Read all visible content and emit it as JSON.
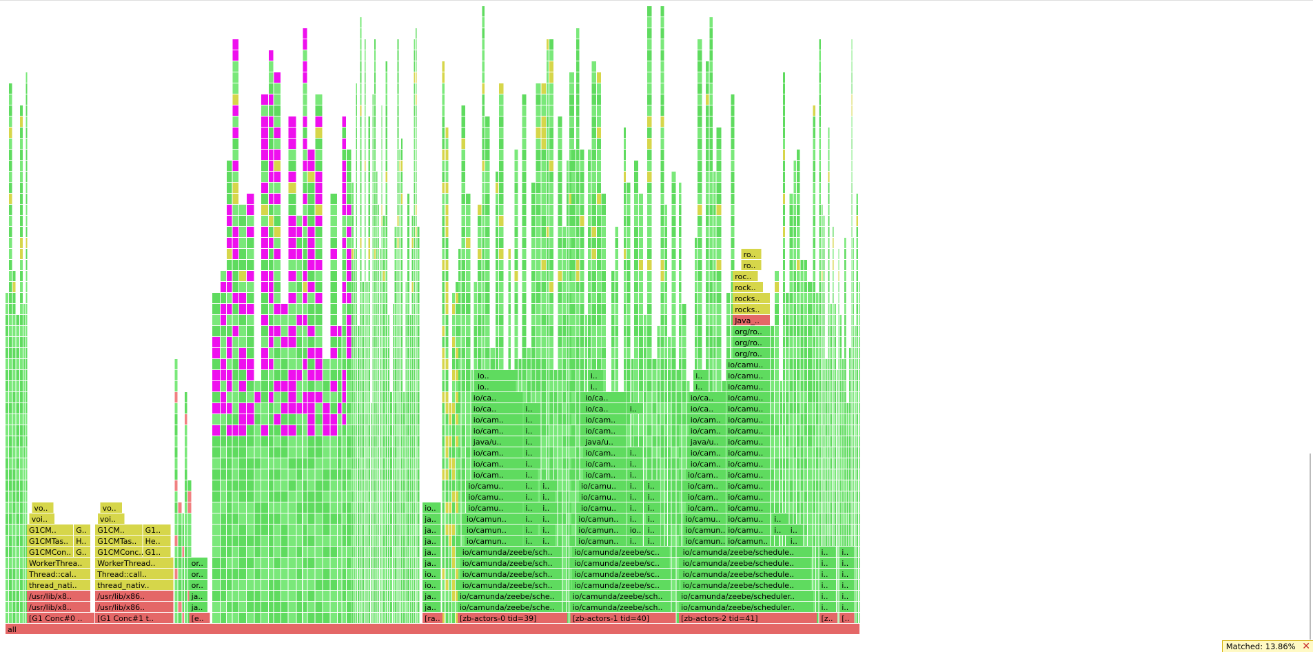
{
  "search": {
    "matched_label": "Matched:",
    "matched_value": "13.86%"
  },
  "icons": {
    "close": "close-icon"
  },
  "colors": {
    "root": "#e06666",
    "thread": "#e86060",
    "java": "#5fdb5f",
    "jvm": "#d8d845",
    "native": "#e87070",
    "highlight": "#ee00ee"
  },
  "frames": [
    {
      "f": "all",
      "x": 0,
      "w": 100,
      "d": 0,
      "c": "r"
    },
    {
      "f": "[G1 Conc#0 ..",
      "x": 2.5,
      "w": 8,
      "d": 1,
      "c": "r"
    },
    {
      "f": "/usr/lib/x8..",
      "x": 2.5,
      "w": 7.5,
      "d": 2,
      "c": "r"
    },
    {
      "f": "/usr/lib/x8..",
      "x": 2.5,
      "w": 7.5,
      "d": 3,
      "c": "r"
    },
    {
      "f": "thread_nati..",
      "x": 2.5,
      "w": 7.5,
      "d": 4,
      "c": "y"
    },
    {
      "f": "Thread::cal..",
      "x": 2.5,
      "w": 7.5,
      "d": 5,
      "c": "y"
    },
    {
      "f": "WorkerThrea..",
      "x": 2.5,
      "w": 7.5,
      "d": 6,
      "c": "y"
    },
    {
      "f": "G1CMCon..",
      "x": 2.5,
      "w": 5.5,
      "d": 7,
      "c": "y"
    },
    {
      "f": "G..",
      "x": 8.0,
      "w": 2.0,
      "d": 7,
      "c": "y"
    },
    {
      "f": "G1CMTas..",
      "x": 2.5,
      "w": 5.5,
      "d": 8,
      "c": "y"
    },
    {
      "f": "H..",
      "x": 8.0,
      "w": 2.0,
      "d": 8,
      "c": "y"
    },
    {
      "f": "G1CM..",
      "x": 2.5,
      "w": 5.5,
      "d": 9,
      "c": "y"
    },
    {
      "f": "G..",
      "x": 8.0,
      "w": 2.0,
      "d": 9,
      "c": "y"
    },
    {
      "f": "voi..",
      "x": 2.8,
      "w": 3.0,
      "d": 10,
      "c": "y"
    },
    {
      "f": "vo..",
      "x": 3.1,
      "w": 2.6,
      "d": 11,
      "c": "y"
    },
    {
      "f": "[G1 Conc#1 t..",
      "x": 10.5,
      "w": 9.2,
      "d": 1,
      "c": "r"
    },
    {
      "f": "/usr/lib/x86..",
      "x": 10.5,
      "w": 9.2,
      "d": 2,
      "c": "r"
    },
    {
      "f": "/usr/lib/x86..",
      "x": 10.5,
      "w": 9.2,
      "d": 3,
      "c": "r"
    },
    {
      "f": "thread_nativ..",
      "x": 10.5,
      "w": 9.2,
      "d": 4,
      "c": "y"
    },
    {
      "f": "Thread::call..",
      "x": 10.5,
      "w": 9.2,
      "d": 5,
      "c": "y"
    },
    {
      "f": "WorkerThread..",
      "x": 10.5,
      "w": 9.2,
      "d": 6,
      "c": "y"
    },
    {
      "f": "G1CMConc..",
      "x": 10.5,
      "w": 5.6,
      "d": 7,
      "c": "y"
    },
    {
      "f": "G1..",
      "x": 16.1,
      "w": 3.3,
      "d": 7,
      "c": "y"
    },
    {
      "f": "G1CMTas..",
      "x": 10.5,
      "w": 5.6,
      "d": 8,
      "c": "y"
    },
    {
      "f": "He..",
      "x": 16.1,
      "w": 3.3,
      "d": 8,
      "c": "y"
    },
    {
      "f": "G1CM..",
      "x": 10.5,
      "w": 5.6,
      "d": 9,
      "c": "y"
    },
    {
      "f": "G1..",
      "x": 16.1,
      "w": 3.3,
      "d": 9,
      "c": "y"
    },
    {
      "f": "voi..",
      "x": 10.8,
      "w": 3.2,
      "d": 10,
      "c": "y"
    },
    {
      "f": "vo..",
      "x": 11.1,
      "w": 2.6,
      "d": 11,
      "c": "y"
    },
    {
      "f": "[e..",
      "x": 21.5,
      "w": 2.5,
      "d": 1,
      "c": "r"
    },
    {
      "f": "ja..",
      "x": 21.5,
      "w": 2.2,
      "d": 2,
      "c": "g"
    },
    {
      "f": "ja..",
      "x": 21.5,
      "w": 2.2,
      "d": 3,
      "c": "g"
    },
    {
      "f": "or..",
      "x": 21.5,
      "w": 2.2,
      "d": 4,
      "c": "g"
    },
    {
      "f": "or..",
      "x": 21.5,
      "w": 2.2,
      "d": 5,
      "c": "g"
    },
    {
      "f": "or..",
      "x": 21.5,
      "w": 2.2,
      "d": 6,
      "c": "g"
    },
    {
      "f": "[ra..",
      "x": 48.8,
      "w": 2.4,
      "d": 1,
      "c": "r"
    },
    {
      "f": "ja..",
      "x": 48.8,
      "w": 2.2,
      "d": 2,
      "c": "g"
    },
    {
      "f": "ja..",
      "x": 48.8,
      "w": 2.2,
      "d": 3,
      "c": "g"
    },
    {
      "f": "io..",
      "x": 48.8,
      "w": 2.2,
      "d": 4,
      "c": "g"
    },
    {
      "f": "io..",
      "x": 48.8,
      "w": 2.2,
      "d": 5,
      "c": "g"
    },
    {
      "f": "ja..",
      "x": 48.8,
      "w": 2.2,
      "d": 6,
      "c": "g"
    },
    {
      "f": "ja..",
      "x": 48.8,
      "w": 2.2,
      "d": 7,
      "c": "g"
    },
    {
      "f": "ja..",
      "x": 48.8,
      "w": 2.2,
      "d": 8,
      "c": "g"
    },
    {
      "f": "ja..",
      "x": 48.8,
      "w": 2.2,
      "d": 9,
      "c": "g"
    },
    {
      "f": "ja..",
      "x": 48.8,
      "w": 2.2,
      "d": 10,
      "c": "g"
    },
    {
      "f": "io..",
      "x": 48.8,
      "w": 2.2,
      "d": 11,
      "c": "g"
    },
    {
      "f": "[zb-actors-0 tid=39]",
      "x": 52.9,
      "w": 12.9,
      "d": 1,
      "c": "r"
    },
    {
      "f": "io/camunda/zeebe/sche..",
      "x": 52.9,
      "w": 12.0,
      "d": 2,
      "c": "g"
    },
    {
      "f": "io/camunda/zeebe/sche..",
      "x": 52.9,
      "w": 12.0,
      "d": 3,
      "c": "g"
    },
    {
      "f": "io/camunda/zeebe/sch..",
      "x": 53.2,
      "w": 11.5,
      "d": 4,
      "c": "g"
    },
    {
      "f": "io/camunda/zeebe/sch..",
      "x": 53.2,
      "w": 11.5,
      "d": 5,
      "c": "g"
    },
    {
      "f": "io/camunda/zeebe/sch..",
      "x": 53.2,
      "w": 11.5,
      "d": 6,
      "c": "g"
    },
    {
      "f": "io/camunda/zeebe/sch..",
      "x": 53.2,
      "w": 11.5,
      "d": 7,
      "c": "g"
    },
    {
      "f": "io/camun..",
      "x": 53.7,
      "w": 6.9,
      "d": 8,
      "c": "g"
    },
    {
      "f": "io/camun..",
      "x": 53.7,
      "w": 6.9,
      "d": 9,
      "c": "g"
    },
    {
      "f": "io/camun..",
      "x": 53.7,
      "w": 6.9,
      "d": 10,
      "c": "g"
    },
    {
      "f": "io/camu..",
      "x": 53.9,
      "w": 6.7,
      "d": 11,
      "c": "g"
    },
    {
      "f": "io/camu..",
      "x": 53.9,
      "w": 6.7,
      "d": 12,
      "c": "g"
    },
    {
      "f": "io/camu..",
      "x": 53.9,
      "w": 6.7,
      "d": 13,
      "c": "g"
    },
    {
      "f": "io/cam..",
      "x": 54.5,
      "w": 6.1,
      "d": 14,
      "c": "g"
    },
    {
      "f": "io/cam..",
      "x": 54.5,
      "w": 6.1,
      "d": 15,
      "c": "g"
    },
    {
      "f": "io/cam..",
      "x": 54.5,
      "w": 6.1,
      "d": 16,
      "c": "g"
    },
    {
      "f": "java/u..",
      "x": 54.5,
      "w": 6.1,
      "d": 17,
      "c": "g"
    },
    {
      "f": "io/cam..",
      "x": 54.5,
      "w": 6.1,
      "d": 18,
      "c": "g"
    },
    {
      "f": "io/cam..",
      "x": 54.5,
      "w": 6.1,
      "d": 19,
      "c": "g"
    },
    {
      "f": "io/ca..",
      "x": 54.5,
      "w": 6.1,
      "d": 20,
      "c": "g"
    },
    {
      "f": "io/ca..",
      "x": 54.5,
      "w": 6.1,
      "d": 21,
      "c": "g"
    },
    {
      "f": "io..",
      "x": 55.0,
      "w": 4.8,
      "d": 22,
      "c": "g"
    },
    {
      "f": "io..",
      "x": 55.0,
      "w": 4.8,
      "d": 23,
      "c": "g"
    },
    {
      "f": "i..",
      "x": 60.6,
      "w": 1.8,
      "d": 8,
      "c": "g"
    },
    {
      "f": "i..",
      "x": 60.6,
      "w": 1.8,
      "d": 9,
      "c": "g"
    },
    {
      "f": "i..",
      "x": 60.6,
      "w": 1.8,
      "d": 10,
      "c": "g"
    },
    {
      "f": "i..",
      "x": 60.6,
      "w": 1.8,
      "d": 11,
      "c": "g"
    },
    {
      "f": "i..",
      "x": 60.6,
      "w": 1.8,
      "d": 12,
      "c": "g"
    },
    {
      "f": "i..",
      "x": 60.6,
      "w": 1.8,
      "d": 13,
      "c": "g"
    },
    {
      "f": "i..",
      "x": 60.6,
      "w": 1.8,
      "d": 14,
      "c": "g"
    },
    {
      "f": "i..",
      "x": 60.6,
      "w": 1.8,
      "d": 15,
      "c": "g"
    },
    {
      "f": "i..",
      "x": 60.6,
      "w": 1.8,
      "d": 16,
      "c": "g"
    },
    {
      "f": "i..",
      "x": 60.6,
      "w": 1.8,
      "d": 17,
      "c": "g"
    },
    {
      "f": "i..",
      "x": 60.6,
      "w": 1.8,
      "d": 18,
      "c": "g"
    },
    {
      "f": "i..",
      "x": 60.6,
      "w": 1.8,
      "d": 19,
      "c": "g"
    },
    {
      "f": "i..",
      "x": 60.6,
      "w": 1.8,
      "d": 20,
      "c": "g"
    },
    {
      "f": "i..",
      "x": 62.6,
      "w": 1.8,
      "d": 8,
      "c": "g"
    },
    {
      "f": "i..",
      "x": 62.6,
      "w": 1.8,
      "d": 9,
      "c": "g"
    },
    {
      "f": "i..",
      "x": 62.6,
      "w": 1.8,
      "d": 10,
      "c": "g"
    },
    {
      "f": "i..",
      "x": 62.6,
      "w": 1.8,
      "d": 11,
      "c": "g"
    },
    {
      "f": "i..",
      "x": 62.6,
      "w": 1.8,
      "d": 12,
      "c": "g"
    },
    {
      "f": "i..",
      "x": 62.6,
      "w": 1.8,
      "d": 13,
      "c": "g"
    },
    {
      "f": "[zb-actors-1 tid=40]",
      "x": 66.1,
      "w": 12.4,
      "d": 1,
      "c": "r"
    },
    {
      "f": "io/camunda/zeebe/sch..",
      "x": 66.1,
      "w": 11.8,
      "d": 2,
      "c": "g"
    },
    {
      "f": "io/camunda/zeebe/sch..",
      "x": 66.1,
      "w": 11.8,
      "d": 3,
      "c": "g"
    },
    {
      "f": "io/camunda/zeebe/sc..",
      "x": 66.3,
      "w": 11.5,
      "d": 4,
      "c": "g"
    },
    {
      "f": "io/camunda/zeebe/sc..",
      "x": 66.3,
      "w": 11.5,
      "d": 5,
      "c": "g"
    },
    {
      "f": "io/camunda/zeebe/sc..",
      "x": 66.3,
      "w": 11.5,
      "d": 6,
      "c": "g"
    },
    {
      "f": "io/camunda/zeebe/sc..",
      "x": 66.3,
      "w": 11.5,
      "d": 7,
      "c": "g"
    },
    {
      "f": "io/camun..",
      "x": 66.8,
      "w": 5.9,
      "d": 8,
      "c": "g"
    },
    {
      "f": "io/camun..",
      "x": 66.8,
      "w": 5.9,
      "d": 9,
      "c": "g"
    },
    {
      "f": "io/camun..",
      "x": 66.8,
      "w": 5.9,
      "d": 10,
      "c": "g"
    },
    {
      "f": "io/camu..",
      "x": 67.1,
      "w": 5.6,
      "d": 11,
      "c": "g"
    },
    {
      "f": "io/camu..",
      "x": 67.1,
      "w": 5.6,
      "d": 12,
      "c": "g"
    },
    {
      "f": "io/camu..",
      "x": 67.1,
      "w": 5.6,
      "d": 13,
      "c": "g"
    },
    {
      "f": "io/cam..",
      "x": 67.6,
      "w": 5.1,
      "d": 14,
      "c": "g"
    },
    {
      "f": "io/cam..",
      "x": 67.6,
      "w": 5.1,
      "d": 15,
      "c": "g"
    },
    {
      "f": "io/cam..",
      "x": 67.6,
      "w": 5.1,
      "d": 16,
      "c": "g"
    },
    {
      "f": "java/u..",
      "x": 67.6,
      "w": 5.1,
      "d": 17,
      "c": "g"
    },
    {
      "f": "io/cam..",
      "x": 67.6,
      "w": 5.1,
      "d": 18,
      "c": "g"
    },
    {
      "f": "io/cam..",
      "x": 67.6,
      "w": 5.1,
      "d": 19,
      "c": "g"
    },
    {
      "f": "io/ca..",
      "x": 67.6,
      "w": 5.1,
      "d": 20,
      "c": "g"
    },
    {
      "f": "io/ca..",
      "x": 67.6,
      "w": 5.1,
      "d": 21,
      "c": "g"
    },
    {
      "f": "i..",
      "x": 68.2,
      "w": 1.8,
      "d": 22,
      "c": "g"
    },
    {
      "f": "i..",
      "x": 68.2,
      "w": 1.8,
      "d": 23,
      "c": "g"
    },
    {
      "f": "i..",
      "x": 72.8,
      "w": 1.8,
      "d": 8,
      "c": "g"
    },
    {
      "f": "io..",
      "x": 72.8,
      "w": 1.8,
      "d": 9,
      "c": "g"
    },
    {
      "f": "i..",
      "x": 72.8,
      "w": 1.8,
      "d": 10,
      "c": "g"
    },
    {
      "f": "i..",
      "x": 72.8,
      "w": 1.8,
      "d": 11,
      "c": "g"
    },
    {
      "f": "i..",
      "x": 72.8,
      "w": 1.8,
      "d": 12,
      "c": "g"
    },
    {
      "f": "i..",
      "x": 72.8,
      "w": 1.8,
      "d": 13,
      "c": "g"
    },
    {
      "f": "i..",
      "x": 72.8,
      "w": 1.8,
      "d": 14,
      "c": "g"
    },
    {
      "f": "i..",
      "x": 72.8,
      "w": 1.8,
      "d": 15,
      "c": "g"
    },
    {
      "f": "i..",
      "x": 72.8,
      "w": 1.8,
      "d": 16,
      "c": "g"
    },
    {
      "f": "i..",
      "x": 72.8,
      "w": 1.8,
      "d": 20,
      "c": "g"
    },
    {
      "f": "i..",
      "x": 74.9,
      "w": 1.8,
      "d": 8,
      "c": "g"
    },
    {
      "f": "i..",
      "x": 74.9,
      "w": 1.8,
      "d": 9,
      "c": "g"
    },
    {
      "f": "i..",
      "x": 74.9,
      "w": 1.8,
      "d": 10,
      "c": "g"
    },
    {
      "f": "i..",
      "x": 74.9,
      "w": 1.8,
      "d": 11,
      "c": "g"
    },
    {
      "f": "i..",
      "x": 74.9,
      "w": 1.8,
      "d": 12,
      "c": "g"
    },
    {
      "f": "i..",
      "x": 74.9,
      "w": 1.8,
      "d": 13,
      "c": "g"
    },
    {
      "f": "[zb-actors-2 tid=41]",
      "x": 78.8,
      "w": 16.2,
      "d": 1,
      "c": "r"
    },
    {
      "f": "io/camunda/zeebe/scheduler..",
      "x": 78.8,
      "w": 15.8,
      "d": 2,
      "c": "g"
    },
    {
      "f": "io/camunda/zeebe/scheduler..",
      "x": 78.8,
      "w": 15.8,
      "d": 3,
      "c": "g"
    },
    {
      "f": "io/camunda/zeebe/schedule..",
      "x": 79.0,
      "w": 15.3,
      "d": 4,
      "c": "g"
    },
    {
      "f": "io/camunda/zeebe/schedule..",
      "x": 79.0,
      "w": 15.3,
      "d": 5,
      "c": "g"
    },
    {
      "f": "io/camunda/zeebe/schedule..",
      "x": 79.0,
      "w": 15.3,
      "d": 6,
      "c": "g"
    },
    {
      "f": "io/camunda/zeebe/schedule..",
      "x": 79.0,
      "w": 15.3,
      "d": 7,
      "c": "g"
    },
    {
      "f": "io/camun..",
      "x": 79.3,
      "w": 5.0,
      "d": 8,
      "c": "g"
    },
    {
      "f": "io/camun..",
      "x": 79.3,
      "w": 5.0,
      "d": 9,
      "c": "g"
    },
    {
      "f": "io/camu..",
      "x": 79.3,
      "w": 5.0,
      "d": 10,
      "c": "g"
    },
    {
      "f": "io/cam..",
      "x": 79.6,
      "w": 4.7,
      "d": 11,
      "c": "g"
    },
    {
      "f": "io/cam..",
      "x": 79.6,
      "w": 4.7,
      "d": 12,
      "c": "g"
    },
    {
      "f": "io/cam..",
      "x": 79.6,
      "w": 4.7,
      "d": 13,
      "c": "g"
    },
    {
      "f": "io/cam..",
      "x": 79.6,
      "w": 4.7,
      "d": 14,
      "c": "g"
    },
    {
      "f": "io/cam..",
      "x": 79.9,
      "w": 4.4,
      "d": 15,
      "c": "g"
    },
    {
      "f": "io/cam..",
      "x": 79.9,
      "w": 4.4,
      "d": 16,
      "c": "g"
    },
    {
      "f": "java/u..",
      "x": 79.9,
      "w": 4.4,
      "d": 17,
      "c": "g"
    },
    {
      "f": "io/cam..",
      "x": 79.9,
      "w": 4.4,
      "d": 18,
      "c": "g"
    },
    {
      "f": "io/cam..",
      "x": 79.9,
      "w": 4.4,
      "d": 19,
      "c": "g"
    },
    {
      "f": "io/ca..",
      "x": 79.9,
      "w": 4.4,
      "d": 20,
      "c": "g"
    },
    {
      "f": "io/ca..",
      "x": 79.9,
      "w": 4.4,
      "d": 21,
      "c": "g"
    },
    {
      "f": "i..",
      "x": 80.5,
      "w": 1.8,
      "d": 22,
      "c": "g"
    },
    {
      "f": "i..",
      "x": 80.5,
      "w": 1.8,
      "d": 23,
      "c": "g"
    },
    {
      "f": "io/camun..",
      "x": 84.3,
      "w": 5.2,
      "d": 8,
      "c": "g"
    },
    {
      "f": "io/camu..",
      "x": 84.3,
      "w": 5.2,
      "d": 9,
      "c": "g"
    },
    {
      "f": "io/camu..",
      "x": 84.3,
      "w": 5.2,
      "d": 10,
      "c": "g"
    },
    {
      "f": "io/camu..",
      "x": 84.3,
      "w": 5.2,
      "d": 11,
      "c": "g"
    },
    {
      "f": "io/camu..",
      "x": 84.3,
      "w": 5.2,
      "d": 12,
      "c": "g"
    },
    {
      "f": "io/camu..",
      "x": 84.3,
      "w": 5.2,
      "d": 13,
      "c": "g"
    },
    {
      "f": "io/camu..",
      "x": 84.3,
      "w": 5.2,
      "d": 14,
      "c": "g"
    },
    {
      "f": "io/camu..",
      "x": 84.3,
      "w": 5.2,
      "d": 15,
      "c": "g"
    },
    {
      "f": "io/camu..",
      "x": 84.3,
      "w": 5.2,
      "d": 16,
      "c": "g"
    },
    {
      "f": "io/camu..",
      "x": 84.3,
      "w": 5.2,
      "d": 17,
      "c": "g"
    },
    {
      "f": "io/camu..",
      "x": 84.3,
      "w": 5.2,
      "d": 18,
      "c": "g"
    },
    {
      "f": "io/camu..",
      "x": 84.3,
      "w": 5.2,
      "d": 19,
      "c": "g"
    },
    {
      "f": "io/camu..",
      "x": 84.3,
      "w": 5.2,
      "d": 20,
      "c": "g"
    },
    {
      "f": "io/camu..",
      "x": 84.3,
      "w": 5.2,
      "d": 21,
      "c": "g"
    },
    {
      "f": "io/camu..",
      "x": 84.3,
      "w": 5.2,
      "d": 22,
      "c": "g"
    },
    {
      "f": "io/camu..",
      "x": 84.3,
      "w": 5.2,
      "d": 23,
      "c": "g"
    },
    {
      "f": "io/camu..",
      "x": 84.3,
      "w": 5.2,
      "d": 24,
      "c": "g"
    },
    {
      "f": "org/ro..",
      "x": 85.1,
      "w": 4.4,
      "d": 25,
      "c": "g"
    },
    {
      "f": "org/ro..",
      "x": 85.1,
      "w": 4.4,
      "d": 26,
      "c": "g"
    },
    {
      "f": "org/ro..",
      "x": 85.1,
      "w": 4.4,
      "d": 27,
      "c": "g"
    },
    {
      "f": "Java_..",
      "x": 85.1,
      "w": 4.4,
      "d": 28,
      "c": "r"
    },
    {
      "f": "rocks..",
      "x": 85.1,
      "w": 4.4,
      "d": 29,
      "c": "y"
    },
    {
      "f": "rocks..",
      "x": 85.1,
      "w": 4.4,
      "d": 30,
      "c": "y"
    },
    {
      "f": "rock..",
      "x": 85.1,
      "w": 3.6,
      "d": 31,
      "c": "y"
    },
    {
      "f": "roc..",
      "x": 85.1,
      "w": 3.0,
      "d": 32,
      "c": "y"
    },
    {
      "f": "ro..",
      "x": 86.1,
      "w": 2.4,
      "d": 33,
      "c": "y"
    },
    {
      "f": "ro..",
      "x": 86.1,
      "w": 2.4,
      "d": 34,
      "c": "y"
    },
    {
      "f": "i..",
      "x": 89.7,
      "w": 1.8,
      "d": 9,
      "c": "g"
    },
    {
      "f": "i..",
      "x": 89.7,
      "w": 1.8,
      "d": 10,
      "c": "g"
    },
    {
      "f": "i..",
      "x": 91.6,
      "w": 1.8,
      "d": 9,
      "c": "g"
    },
    {
      "f": "i..",
      "x": 91.6,
      "w": 1.8,
      "d": 8,
      "c": "g"
    },
    {
      "f": "[z..",
      "x": 95.2,
      "w": 2.2,
      "d": 1,
      "c": "r"
    },
    {
      "f": "i..",
      "x": 95.2,
      "w": 2.0,
      "d": 2,
      "c": "g"
    },
    {
      "f": "i..",
      "x": 95.2,
      "w": 2.0,
      "d": 3,
      "c": "g"
    },
    {
      "f": "i..",
      "x": 95.2,
      "w": 2.0,
      "d": 4,
      "c": "g"
    },
    {
      "f": "i..",
      "x": 95.2,
      "w": 2.0,
      "d": 5,
      "c": "g"
    },
    {
      "f": "i..",
      "x": 95.2,
      "w": 2.0,
      "d": 6,
      "c": "g"
    },
    {
      "f": "i..",
      "x": 95.2,
      "w": 2.0,
      "d": 7,
      "c": "g"
    },
    {
      "f": "[..",
      "x": 97.6,
      "w": 1.8,
      "d": 1,
      "c": "r"
    },
    {
      "f": "i..",
      "x": 97.6,
      "w": 1.8,
      "d": 2,
      "c": "g"
    },
    {
      "f": "i..",
      "x": 97.6,
      "w": 1.8,
      "d": 3,
      "c": "g"
    },
    {
      "f": "i..",
      "x": 97.6,
      "w": 1.8,
      "d": 4,
      "c": "g"
    },
    {
      "f": "i..",
      "x": 97.6,
      "w": 1.8,
      "d": 5,
      "c": "g"
    },
    {
      "f": "i..",
      "x": 97.6,
      "w": 1.8,
      "d": 6,
      "c": "g"
    },
    {
      "f": "i..",
      "x": 97.6,
      "w": 1.8,
      "d": 7,
      "c": "g"
    }
  ]
}
